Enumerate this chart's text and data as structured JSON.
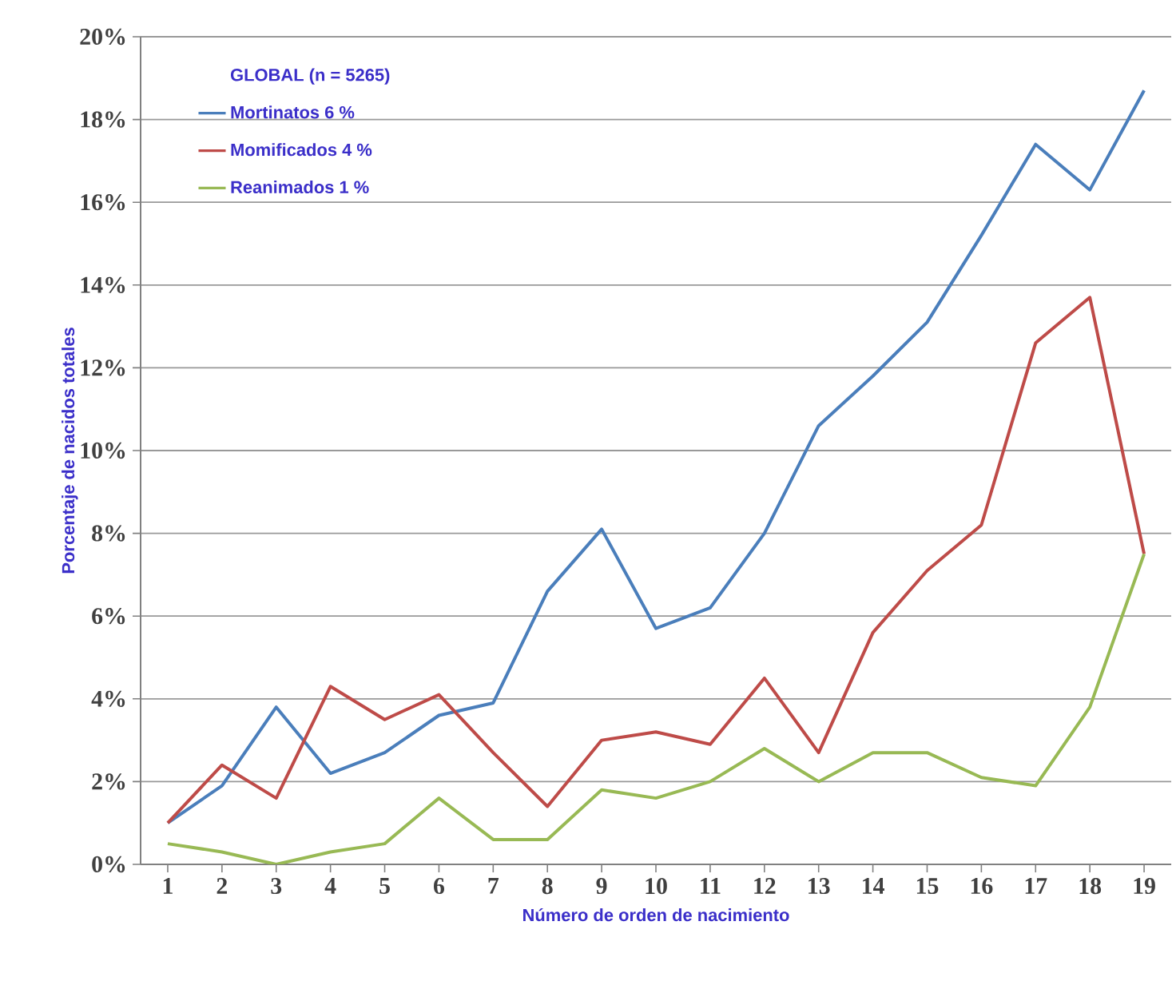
{
  "chart_data": {
    "type": "line",
    "xlabel": "Número de orden de nacimiento",
    "ylabel": "Porcentaje de nacidos totales",
    "legend_title": "GLOBAL (n = 5265)",
    "categories": [
      "1",
      "2",
      "3",
      "4",
      "5",
      "6",
      "7",
      "8",
      "9",
      "10",
      "11",
      "12",
      "13",
      "14",
      "15",
      "16",
      "17",
      "18",
      "19"
    ],
    "series": [
      {
        "name": "Mortinatos 6 %",
        "color": "#4a7ebb",
        "values": [
          1.0,
          1.9,
          3.8,
          2.2,
          2.7,
          3.6,
          3.9,
          6.6,
          8.1,
          5.7,
          6.2,
          8.0,
          10.6,
          11.8,
          13.1,
          15.2,
          17.4,
          16.3,
          18.7
        ]
      },
      {
        "name": "Momificados 4 %",
        "color": "#be4b48",
        "values": [
          1.0,
          2.4,
          1.6,
          4.3,
          3.5,
          4.1,
          2.7,
          1.4,
          3.0,
          3.2,
          2.9,
          4.5,
          2.7,
          5.6,
          7.1,
          8.2,
          12.6,
          13.7,
          7.5
        ]
      },
      {
        "name": "Reanimados 1 %",
        "color": "#98b954",
        "values": [
          0.5,
          0.3,
          0.0,
          0.3,
          0.5,
          1.6,
          0.6,
          0.6,
          1.8,
          1.6,
          2.0,
          2.8,
          2.0,
          2.7,
          2.7,
          2.1,
          1.9,
          3.8,
          7.5
        ]
      }
    ],
    "ylim": [
      0,
      20
    ],
    "yticks": [
      {
        "value": 0,
        "label": "0%"
      },
      {
        "value": 2,
        "label": "2%"
      },
      {
        "value": 4,
        "label": "4%"
      },
      {
        "value": 6,
        "label": "6%"
      },
      {
        "value": 8,
        "label": "8%"
      },
      {
        "value": 10,
        "label": "10%"
      },
      {
        "value": 12,
        "label": "12%"
      },
      {
        "value": 14,
        "label": "14%"
      },
      {
        "value": 16,
        "label": "16%"
      },
      {
        "value": 18,
        "label": "18%"
      },
      {
        "value": 20,
        "label": "20%"
      }
    ],
    "grid": "y",
    "legend": "top left",
    "marker": "none",
    "line_style": "solid"
  }
}
